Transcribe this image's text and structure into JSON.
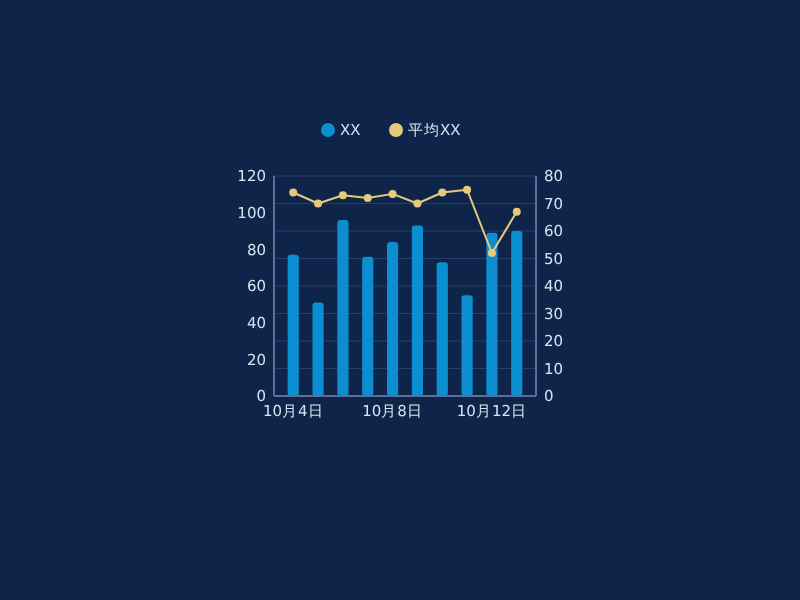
{
  "chart_data": {
    "type": "bar",
    "categories": [
      "10月4日",
      null,
      null,
      null,
      "10月8日",
      null,
      null,
      null,
      "10月12日",
      null
    ],
    "series": [
      {
        "name": "XX",
        "color": "#0b8fd0",
        "values": [
          77,
          51,
          96,
          76,
          84,
          93,
          73,
          55,
          89,
          90
        ]
      },
      {
        "name": "平均XX",
        "type": "line",
        "axis": "y2",
        "color": "#e8c97c",
        "values": [
          74,
          70,
          73,
          72,
          73.5,
          70,
          74,
          75,
          52,
          67
        ]
      }
    ],
    "ylim": [
      0,
      120
    ],
    "yticks": [
      0,
      20,
      40,
      60,
      80,
      100,
      120
    ],
    "y2lim": [
      0,
      80
    ],
    "y2ticks": [
      0,
      10,
      20,
      30,
      40,
      50,
      60,
      70,
      80
    ],
    "grid": "y2",
    "legend": "top",
    "marker": "circle"
  }
}
